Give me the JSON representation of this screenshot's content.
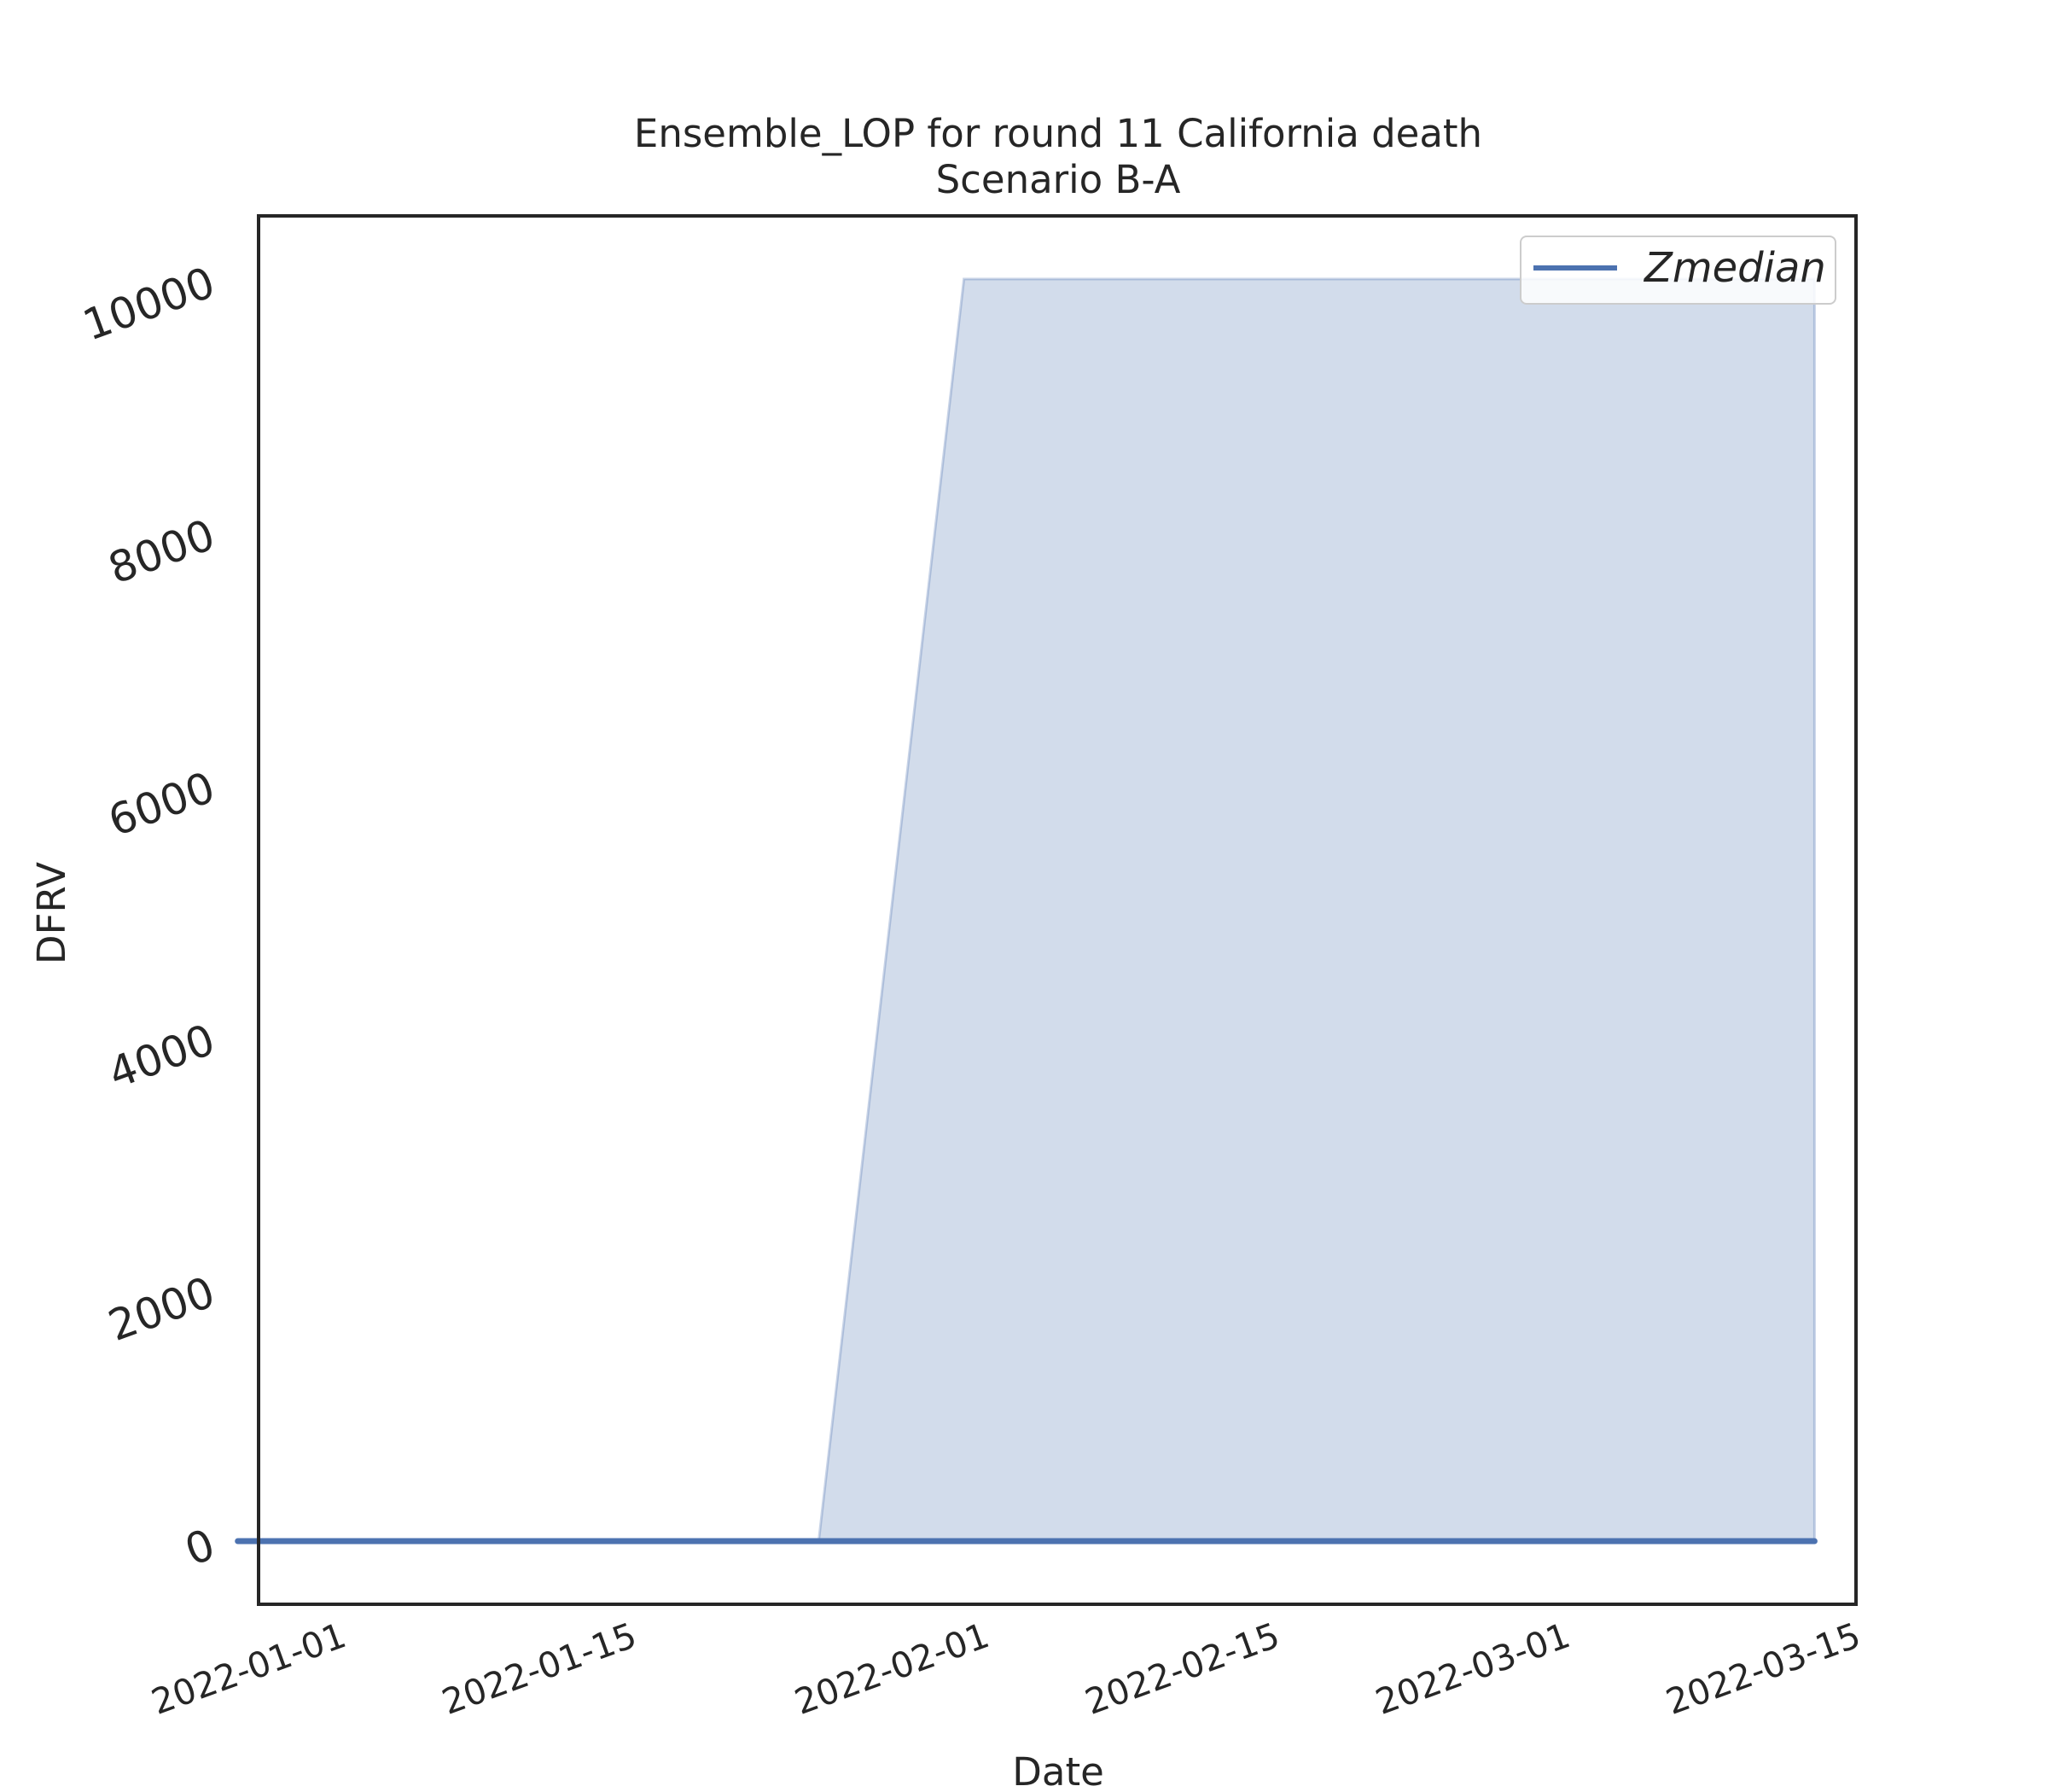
{
  "chart_data": {
    "type": "line",
    "title": "Ensemble_LOP for round 11 California death",
    "subtitle": "Scenario B-A",
    "xlabel": "Date",
    "ylabel": "DFRV",
    "x_ticks": [
      "2022-01-01",
      "2022-01-15",
      "2022-02-01",
      "2022-02-15",
      "2022-03-01",
      "2022-03-15"
    ],
    "y_ticks": [
      0,
      2000,
      4000,
      6000,
      8000,
      10000
    ],
    "xlim": [
      "2021-12-28",
      "2022-03-15"
    ],
    "ylim": [
      -500,
      10500
    ],
    "grid": false,
    "legend": {
      "position": "top-right",
      "entries": [
        "Zmedian"
      ]
    },
    "series": [
      {
        "name": "Zmedian",
        "color": "#4c72b0",
        "x": [
          "2021-12-27",
          "2022-01-24",
          "2022-01-31",
          "2022-03-13"
        ],
        "values": [
          0,
          0,
          0,
          0
        ]
      }
    ],
    "band": {
      "color": "#4c72b0",
      "x": [
        "2021-12-27",
        "2022-01-24",
        "2022-01-31",
        "2022-03-13"
      ],
      "lower": [
        0,
        0,
        0,
        0
      ],
      "upper": [
        0,
        0,
        10000,
        10000
      ]
    }
  }
}
